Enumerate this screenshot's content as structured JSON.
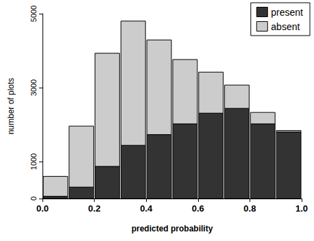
{
  "chart_data": {
    "type": "bar",
    "stacked": true,
    "x_label": "predicted probability",
    "y_label": "number of plots",
    "bins": [
      0,
      0.1,
      0.2,
      0.3,
      0.4,
      0.5,
      0.6,
      0.7,
      0.8,
      0.9,
      1.0
    ],
    "series": [
      {
        "name": "present",
        "color": "#333333",
        "values": [
          60,
          310,
          870,
          1440,
          1730,
          2020,
          2310,
          2440,
          2020,
          1800
        ]
      },
      {
        "name": "absent",
        "color": "#cccccc",
        "values": [
          540,
          1650,
          3060,
          3360,
          2560,
          1740,
          1110,
          630,
          310,
          40
        ]
      }
    ],
    "xlim": [
      0,
      1
    ],
    "xticks": [
      {
        "value": 0,
        "label": "0.0"
      },
      0.2,
      0.4,
      0.6,
      0.8,
      {
        "value": 1,
        "label": "1.0"
      }
    ],
    "ylim": [
      0,
      5000
    ],
    "yticks": [
      0,
      1000,
      3000,
      5000
    ],
    "legend": "top-right",
    "grid": false
  }
}
